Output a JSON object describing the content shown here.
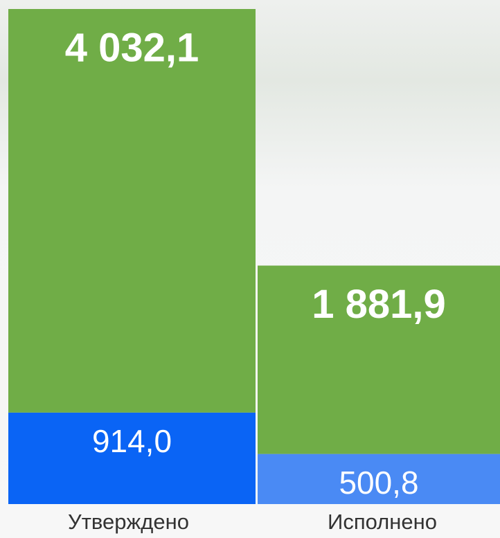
{
  "chart_data": {
    "type": "stacked-bar",
    "categories": [
      "Утверждено",
      "Исполнено"
    ],
    "series": [
      {
        "colors": [
          "#0a64f5",
          "#4a8af4"
        ],
        "values": [
          914.0,
          500.8
        ],
        "value_labels": [
          "914,0",
          "500,8"
        ]
      },
      {
        "color": "#70ad47",
        "values": [
          4032.1,
          1881.9
        ],
        "value_labels": [
          "4 032,1",
          "1 881,9"
        ]
      }
    ]
  }
}
